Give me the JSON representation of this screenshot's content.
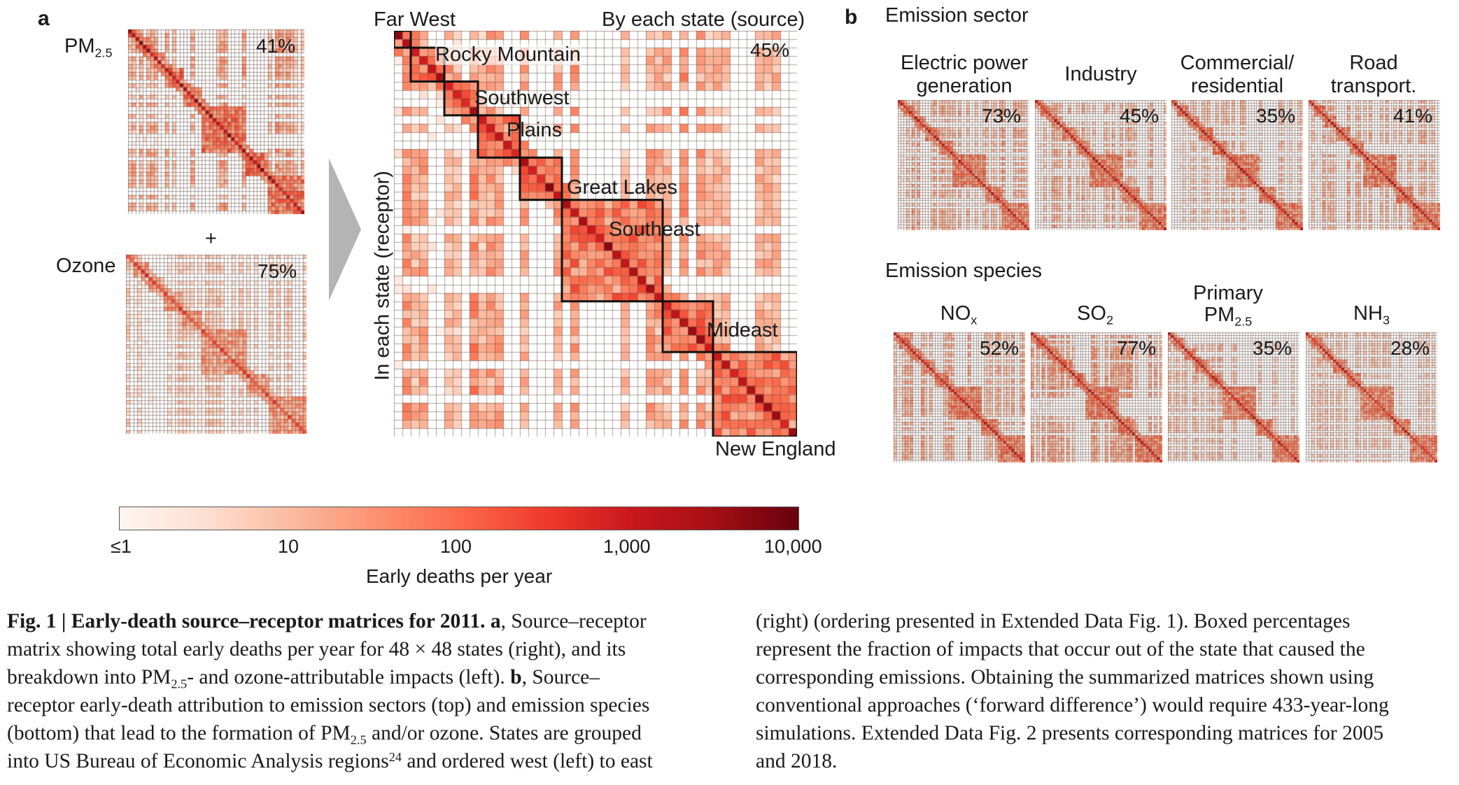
{
  "panel_a": {
    "letter": "a",
    "pm_label": "PM",
    "pm_sub": "2.5",
    "pm_pct": "41%",
    "plus": "+",
    "ozone_label": "Ozone",
    "ozone_pct": "75%",
    "main_pct": "45%",
    "top_right_label": "By each state (source)",
    "side_label": "In each state (receptor)",
    "regions": [
      "Far West",
      "Rocky Mountain",
      "Southwest",
      "Plains",
      "Great Lakes",
      "Southeast",
      "Mideast",
      "New England"
    ]
  },
  "panel_b": {
    "letter": "b",
    "sector_title": "Emission sector",
    "sectors": [
      {
        "line1": "Electric power",
        "line2": "generation",
        "pct": "73%"
      },
      {
        "line1": "",
        "line2": "Industry",
        "pct": "45%"
      },
      {
        "line1": "Commercial/",
        "line2": "residential",
        "pct": "35%"
      },
      {
        "line1": "Road",
        "line2": "transport.",
        "pct": "41%"
      }
    ],
    "species_title": "Emission species",
    "species": [
      {
        "top": "",
        "main": "NO",
        "sub": "x",
        "pct": "52%"
      },
      {
        "top": "",
        "main": "SO",
        "sub": "2",
        "pct": "77%"
      },
      {
        "top": "Primary",
        "main": "PM",
        "sub": "2.5",
        "pct": "35%"
      },
      {
        "top": "",
        "main": "NH",
        "sub": "3",
        "pct": "28%"
      }
    ]
  },
  "colorbar": {
    "title": "Early deaths per year",
    "ticks": [
      "≤1",
      "10",
      "100",
      "1,000",
      "10,000"
    ],
    "colors": [
      "#fff5f0",
      "#fde0d2",
      "#fcbba1",
      "#fc9272",
      "#fb6a4a",
      "#ef3b2c",
      "#cb181d",
      "#a50f15",
      "#67000d"
    ]
  },
  "caption": {
    "fig": "Fig. 1",
    "sep": " | ",
    "title": "Early-death source–receptor matrices for 2011.",
    "a_letter": "a",
    "b_letter": "b",
    "l1_rest": ", Source–receptor",
    "l2": "matrix showing total early deaths per year for 48 × 48 states (right), and its",
    "l3_a": "breakdown into PM",
    "l3_sub": "2.5",
    "l3_b": "- and ozone-attributable impacts (left). ",
    "l3_c": ", Source–",
    "l4": "receptor early-death attribution to emission sectors (top) and emission species",
    "l5_a": "(bottom) that lead to the formation of PM",
    "l5_sub": "2.5",
    "l5_b": " and/or ozone. States are grouped",
    "l6_a": "into US Bureau of Economic Analysis regions",
    "l6_sup": "24",
    "l6_b": " and ordered west (left) to east",
    "r1": "(right) (ordering presented in Extended Data Fig. 1). Boxed percentages",
    "r2": "represent the fraction of impacts that occur out of the state that caused the",
    "r3": "corresponding emissions. Obtaining the summarized matrices shown using",
    "r4": "conventional approaches (‘forward difference’) would require 433-year-long",
    "r5": "simulations. Extended Data Fig. 2 presents corresponding matrices for 2005",
    "r6": "and 2018."
  }
}
